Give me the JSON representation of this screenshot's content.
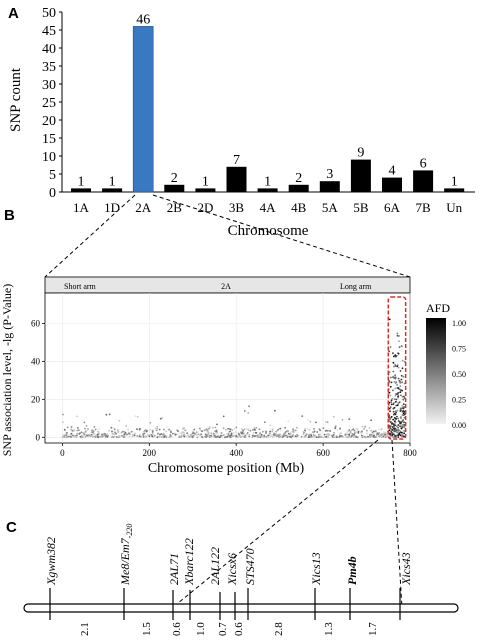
{
  "chart_data": [
    {
      "panel": "A",
      "type": "bar",
      "categories": [
        "1A",
        "1D",
        "2A",
        "2B",
        "2D",
        "3B",
        "4A",
        "4B",
        "5A",
        "5B",
        "6A",
        "7B",
        "Un"
      ],
      "values": [
        1,
        1,
        46,
        2,
        1,
        7,
        1,
        2,
        3,
        9,
        4,
        6,
        1
      ],
      "xlabel": "Chromosome",
      "ylabel": "SNP count",
      "ylim": [
        0,
        50
      ],
      "yticks": [
        0,
        5,
        10,
        15,
        20,
        25,
        30,
        35,
        40,
        45,
        50
      ],
      "highlight_category": "2A",
      "highlight_color": "#3a78c2",
      "bar_color": "#000000"
    },
    {
      "panel": "B",
      "type": "scatter",
      "strip_labels": [
        "Short arm",
        "2A",
        "Long arm"
      ],
      "xlabel": "Chromosome position (Mb)",
      "ylabel": "SNP association level, -lg (P-Value)",
      "xlim": [
        -40,
        800
      ],
      "ylim": [
        -3,
        76
      ],
      "xticks": [
        0,
        200,
        400,
        600,
        800
      ],
      "yticks": [
        0,
        20,
        40,
        60
      ],
      "legend_title": "AFD",
      "legend_ticks": [
        "1.00",
        "0.75",
        "0.50",
        "0.25",
        "0.00"
      ],
      "highlight_region_mb": [
        750,
        790
      ],
      "highlight_color": "#d9302c"
    },
    {
      "panel": "C",
      "type": "diagram",
      "markers": [
        {
          "name": "Xgwm382",
          "sub": ""
        },
        {
          "name": "Me8/Em7",
          "sub": "-220"
        },
        {
          "name": "Xbarc122",
          "sub": ""
        },
        {
          "name": "2AL71",
          "sub": ""
        },
        {
          "name": "2AL122",
          "sub": ""
        },
        {
          "name": "Xicsx6",
          "sub": ""
        },
        {
          "name": "STS470",
          "sub": ""
        },
        {
          "name": "Xics13",
          "sub": ""
        },
        {
          "name": "Pm4b",
          "sub": ""
        },
        {
          "name": "Xics43",
          "sub": ""
        }
      ],
      "distances_cM": [
        "2.1",
        "1.5",
        "0.6",
        "1.0",
        "0.7",
        "0.6",
        "2.8",
        "1.3",
        "1.7"
      ]
    }
  ],
  "panels": {
    "a": "A",
    "b": "B",
    "c": "C"
  }
}
